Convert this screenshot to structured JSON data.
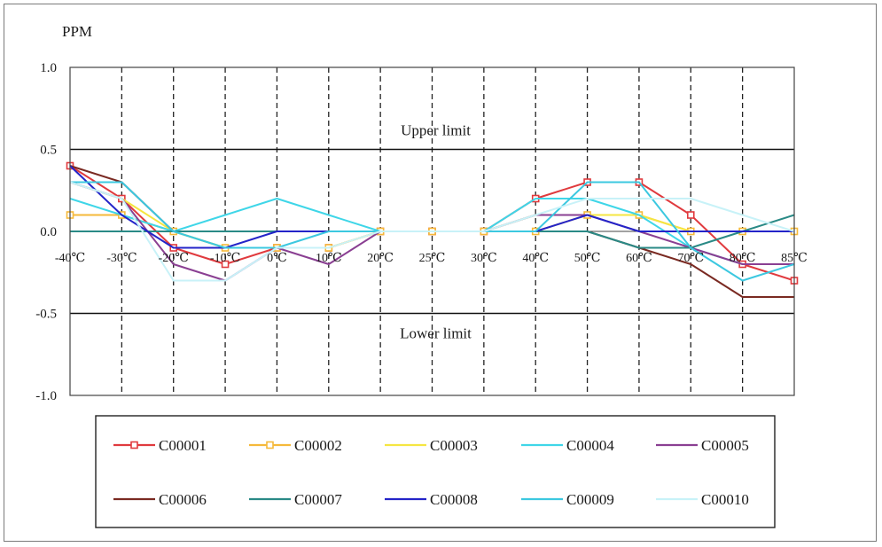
{
  "chart_data": {
    "type": "line",
    "ylabel": "PPM",
    "ylim": [
      -1.0,
      1.0
    ],
    "yticks": [
      "1.0",
      "0.5",
      "0.0",
      "-0.5",
      "-1.0"
    ],
    "yticks_values": [
      1.0,
      0.5,
      0.0,
      -0.5,
      -1.0
    ],
    "categories": [
      "-40℃",
      "-30℃",
      "-20℃",
      "-10℃",
      "0℃",
      "10℃",
      "20℃",
      "25℃",
      "30℃",
      "40℃",
      "50℃",
      "60℃",
      "70℃",
      "80℃",
      "85℃"
    ],
    "limits": [
      {
        "label": "Upper limit",
        "value": 0.5
      },
      {
        "label": "Lower limit",
        "value": -0.5
      }
    ],
    "legend_position": "bottom",
    "series": [
      {
        "name": "C00001",
        "color": "#e03a3e",
        "marker": "square",
        "values": [
          0.4,
          0.2,
          -0.1,
          -0.2,
          -0.1,
          -0.1,
          0.0,
          0.0,
          0.0,
          0.2,
          0.3,
          0.3,
          0.1,
          -0.2,
          -0.3
        ]
      },
      {
        "name": "C00002",
        "color": "#f5b93a",
        "marker": "square",
        "values": [
          0.1,
          0.1,
          0.0,
          -0.1,
          -0.1,
          -0.1,
          0.0,
          0.0,
          0.0,
          0.0,
          0.1,
          0.1,
          0.0,
          0.0,
          0.0
        ]
      },
      {
        "name": "C00003",
        "color": "#f5e642",
        "marker": "none",
        "values": [
          0.3,
          0.2,
          0.0,
          -0.1,
          -0.1,
          -0.1,
          0.0,
          0.0,
          0.0,
          0.1,
          0.1,
          0.1,
          0.0,
          0.0,
          0.0
        ]
      },
      {
        "name": "C00004",
        "color": "#3fd6e8",
        "marker": "none",
        "values": [
          0.2,
          0.1,
          0.0,
          0.1,
          0.2,
          0.1,
          0.0,
          0.0,
          0.0,
          0.2,
          0.2,
          0.1,
          -0.1,
          -0.2,
          -0.2
        ]
      },
      {
        "name": "C00005",
        "color": "#8a3f92",
        "marker": "none",
        "values": [
          0.3,
          0.2,
          -0.2,
          -0.3,
          -0.1,
          -0.2,
          0.0,
          0.0,
          0.0,
          0.1,
          0.1,
          0.0,
          -0.1,
          -0.2,
          -0.2
        ]
      },
      {
        "name": "C00006",
        "color": "#7a2a22",
        "marker": "none",
        "values": [
          0.4,
          0.3,
          0.0,
          0.0,
          0.0,
          0.0,
          0.0,
          0.0,
          0.0,
          0.0,
          0.0,
          -0.1,
          -0.2,
          -0.4,
          -0.4
        ]
      },
      {
        "name": "C00007",
        "color": "#2a8a86",
        "marker": "none",
        "values": [
          0.0,
          0.0,
          0.0,
          0.0,
          0.0,
          0.0,
          0.0,
          0.0,
          0.0,
          0.0,
          0.0,
          -0.1,
          -0.1,
          0.0,
          0.1
        ]
      },
      {
        "name": "C00008",
        "color": "#2424c8",
        "marker": "none",
        "values": [
          0.4,
          0.1,
          -0.1,
          -0.1,
          0.0,
          0.0,
          0.0,
          0.0,
          0.0,
          0.0,
          0.1,
          0.0,
          0.0,
          0.0,
          0.0
        ]
      },
      {
        "name": "C00009",
        "color": "#3cc8e0",
        "marker": "none",
        "values": [
          0.3,
          0.3,
          0.0,
          -0.1,
          -0.1,
          0.0,
          0.0,
          0.0,
          0.0,
          0.0,
          0.3,
          0.3,
          -0.1,
          -0.3,
          -0.2
        ]
      },
      {
        "name": "C00010",
        "color": "#c8f2f8",
        "marker": "none",
        "values": [
          0.3,
          0.2,
          -0.3,
          -0.3,
          -0.1,
          -0.1,
          0.0,
          0.0,
          0.0,
          0.1,
          0.2,
          0.2,
          0.2,
          0.1,
          0.0
        ]
      }
    ]
  }
}
